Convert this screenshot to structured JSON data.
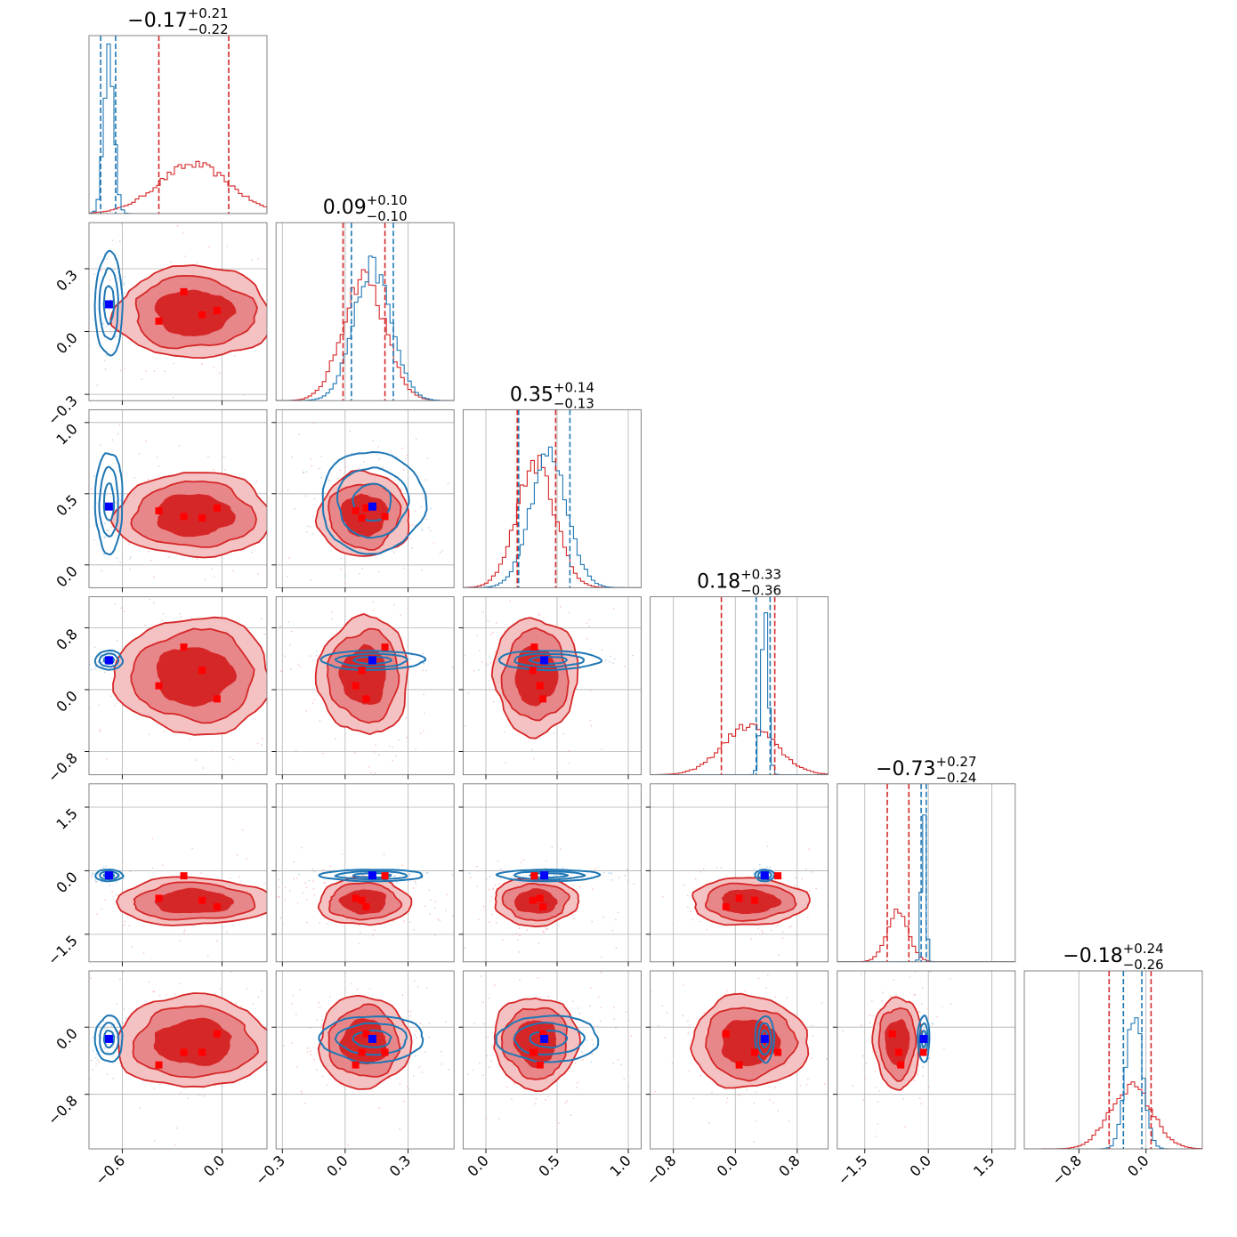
{
  "chart_data": {
    "type": "corner",
    "n_params": 6,
    "params": [
      {
        "range": [
          -0.8,
          0.27
        ],
        "ticks": [
          -0.6,
          0.0
        ],
        "tick_labels": [
          "−0.6",
          "0.0"
        ],
        "title_center": "−0.17",
        "title_plus": "+0.21",
        "title_minus": "−0.22"
      },
      {
        "range": [
          -0.33,
          0.52
        ],
        "ticks": [
          -0.3,
          0.0,
          0.3
        ],
        "tick_labels": [
          "−0.3",
          "0.0",
          "0.3"
        ],
        "title_center": "0.09",
        "title_plus": "+0.10",
        "title_minus": "−0.10"
      },
      {
        "range": [
          -0.16,
          1.09
        ],
        "ticks": [
          0.0,
          0.5,
          1.0
        ],
        "tick_labels": [
          "0.0",
          "0.5",
          "1.0"
        ],
        "title_center": "0.35",
        "title_plus": "+0.14",
        "title_minus": "−0.13"
      },
      {
        "range": [
          -1.1,
          1.2
        ],
        "ticks": [
          -0.8,
          0.0,
          0.8
        ],
        "tick_labels": [
          "−0.8",
          "0.0",
          "0.8"
        ],
        "title_center": "0.18",
        "title_plus": "+0.33",
        "title_minus": "−0.36"
      },
      {
        "range": [
          -2.15,
          2.05
        ],
        "ticks": [
          -1.5,
          0.0,
          1.5
        ],
        "tick_labels": [
          "−1.5",
          "0.0",
          "1.5"
        ],
        "title_center": "−0.73",
        "title_plus": "+0.27",
        "title_minus": "−0.24"
      },
      {
        "range": [
          -1.45,
          0.67
        ],
        "ticks": [
          -0.8,
          0.0
        ],
        "tick_labels": [
          "−0.8",
          "0.0"
        ],
        "title_center": "−0.18",
        "title_plus": "+0.24",
        "title_minus": "−0.26"
      }
    ],
    "red": {
      "color": "#d62728",
      "mean": [
        -0.17,
        0.09,
        0.35,
        0.18,
        -0.73,
        -0.18
      ],
      "sd": [
        0.215,
        0.1,
        0.135,
        0.345,
        0.255,
        0.25
      ],
      "quantiles_16_84": [
        [
          -0.38,
          0.04
        ],
        [
          -0.01,
          0.19
        ],
        [
          0.22,
          0.49
        ],
        [
          -0.18,
          0.51
        ],
        [
          -0.97,
          -0.46
        ],
        [
          -0.44,
          0.06
        ]
      ],
      "markers": [
        [
          -0.38,
          0.05,
          0.38,
          0.05,
          -0.65,
          -0.45
        ],
        [
          -0.23,
          0.19,
          0.34,
          0.55,
          -0.12,
          -0.3
        ],
        [
          -0.12,
          0.08,
          0.33,
          0.25,
          -0.7,
          -0.3
        ],
        [
          -0.03,
          0.1,
          0.4,
          -0.12,
          -0.85,
          -0.08
        ]
      ]
    },
    "blue": {
      "color": "#1f77b4",
      "mean": [
        -0.68,
        0.13,
        0.44,
        0.38,
        -0.11,
        -0.14
      ],
      "sd": [
        0.03,
        0.09,
        0.13,
        0.045,
        0.05,
        0.1
      ],
      "quantiles_16_84": [
        [
          -0.73,
          -0.64
        ],
        [
          0.03,
          0.23
        ],
        [
          0.23,
          0.59
        ],
        [
          0.27,
          0.45
        ],
        [
          -0.17,
          -0.05
        ],
        [
          -0.27,
          -0.05
        ]
      ],
      "marker": [
        -0.68,
        0.13,
        0.41,
        0.38,
        -0.11,
        -0.14
      ]
    },
    "grid": true
  }
}
